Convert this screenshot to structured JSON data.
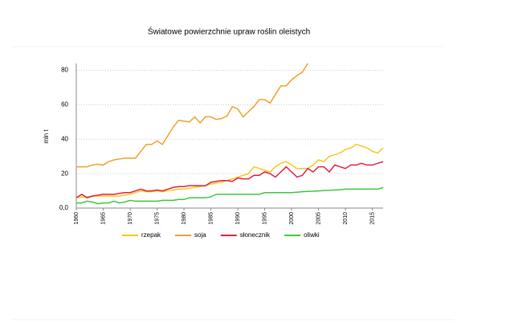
{
  "chart_data": {
    "type": "line",
    "title": "Światowe powierzchnie upraw roślin oleistych",
    "y_label": "mln t",
    "x": [
      1960,
      1961,
      1962,
      1963,
      1964,
      1965,
      1966,
      1967,
      1968,
      1969,
      1970,
      1971,
      1972,
      1973,
      1974,
      1975,
      1976,
      1977,
      1978,
      1979,
      1980,
      1981,
      1982,
      1983,
      1984,
      1985,
      1986,
      1987,
      1988,
      1989,
      1990,
      1991,
      1992,
      1993,
      1994,
      1995,
      1996,
      1997,
      1998,
      1999,
      2000,
      2001,
      2002,
      2003,
      2004,
      2005,
      2006,
      2007,
      2008,
      2009,
      2010,
      2011,
      2012,
      2013,
      2014,
      2015,
      2016,
      2017
    ],
    "xlim": [
      1960,
      2017
    ],
    "xticks": [
      1960,
      1965,
      1970,
      1975,
      1980,
      1985,
      1990,
      1995,
      2000,
      2005,
      2010,
      2015
    ],
    "ylim": [
      0,
      84
    ],
    "yticks": [
      {
        "value": 0,
        "label": "0,0"
      },
      20,
      40,
      60,
      80
    ],
    "grid": true,
    "legend": "bottom",
    "series": [
      {
        "name": "rzepak",
        "color": "#f7c61c",
        "values": [
          6,
          6.5,
          6.5,
          7,
          7,
          7,
          7,
          7,
          7,
          7.5,
          8,
          9,
          10,
          9.5,
          9.5,
          10,
          9.5,
          10,
          10.5,
          11,
          11,
          11.5,
          12,
          12.5,
          13,
          14,
          14.5,
          15,
          16,
          17,
          18,
          19,
          20,
          24,
          23,
          22,
          21,
          24,
          26,
          27,
          25,
          23,
          23,
          23,
          25,
          28,
          27,
          30,
          31,
          32,
          34,
          35,
          37,
          36,
          35,
          33,
          32,
          35
        ]
      },
      {
        "name": "soja",
        "color": "#f0a028",
        "values": [
          24,
          24,
          24,
          25,
          25.5,
          25,
          27,
          28,
          28.5,
          29,
          29,
          29,
          33,
          37,
          37,
          39,
          37,
          42,
          47,
          51,
          50.5,
          50,
          53,
          49.5,
          53,
          53,
          51.5,
          52,
          53.5,
          59,
          57.5,
          53,
          56,
          59,
          63,
          63,
          61,
          66,
          71,
          71,
          74.5,
          77,
          79,
          84,
          null,
          null,
          null,
          null,
          null,
          null,
          null,
          null,
          null,
          null,
          null,
          null,
          null,
          null
        ]
      },
      {
        "name": "słonecznik",
        "color": "#e2203c",
        "values": [
          6,
          8,
          6,
          7,
          7.5,
          8,
          8,
          8,
          8.5,
          9,
          9,
          10,
          11,
          10,
          10,
          10.5,
          10,
          11,
          12,
          12.5,
          12.5,
          13,
          13,
          13,
          13,
          15,
          15.5,
          16,
          16,
          15.5,
          17.5,
          17,
          17,
          19,
          19,
          21,
          20,
          18,
          21,
          24,
          21,
          18,
          19,
          23,
          21,
          24,
          24,
          21,
          25,
          24,
          23,
          25,
          25,
          26,
          25,
          25,
          26,
          27
        ]
      },
      {
        "name": "oliwki",
        "color": "#3cc83c",
        "values": [
          3,
          3,
          4,
          3.5,
          2.5,
          3,
          3,
          4,
          3,
          3.5,
          4.5,
          4,
          4,
          4,
          4,
          4,
          4.5,
          4.5,
          4.5,
          5,
          5,
          6,
          6,
          6,
          6,
          6.5,
          8,
          8,
          8,
          8,
          8,
          8,
          8,
          8,
          8,
          9,
          9,
          9,
          9,
          9,
          9,
          9.2,
          9.5,
          9.7,
          9.8,
          10,
          10.2,
          10.3,
          10.5,
          10.6,
          11,
          11,
          11,
          11,
          11,
          11,
          11,
          12
        ]
      }
    ]
  }
}
